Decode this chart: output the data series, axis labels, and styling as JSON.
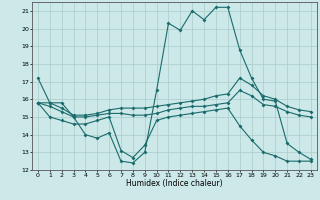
{
  "xlabel": "Humidex (Indice chaleur)",
  "background_color": "#cce8e8",
  "grid_color": "#aacccc",
  "line_color": "#1a6b6b",
  "xlim": [
    -0.5,
    23.5
  ],
  "ylim": [
    12,
    21.5
  ],
  "yticks": [
    12,
    13,
    14,
    15,
    16,
    17,
    18,
    19,
    20,
    21
  ],
  "xticks": [
    0,
    1,
    2,
    3,
    4,
    5,
    6,
    7,
    8,
    9,
    10,
    11,
    12,
    13,
    14,
    15,
    16,
    17,
    18,
    19,
    20,
    21,
    22,
    23
  ],
  "line1_x": [
    0,
    1,
    2,
    3,
    4,
    5,
    6,
    7,
    8,
    9,
    10,
    11,
    12,
    13,
    14,
    15,
    16,
    17,
    18,
    19,
    20,
    21,
    22,
    23
  ],
  "line1_y": [
    17.2,
    15.8,
    15.8,
    15.0,
    14.0,
    13.8,
    14.1,
    12.5,
    12.4,
    13.0,
    16.5,
    20.3,
    19.9,
    21.0,
    20.5,
    21.2,
    21.2,
    18.8,
    17.2,
    16.0,
    15.9,
    13.5,
    13.0,
    12.6
  ],
  "line2_x": [
    0,
    1,
    2,
    3,
    4,
    5,
    6,
    7,
    8,
    9,
    10,
    11,
    12,
    13,
    14,
    15,
    16,
    17,
    18,
    19,
    20,
    21,
    22,
    23
  ],
  "line2_y": [
    15.8,
    15.8,
    15.5,
    15.1,
    15.1,
    15.2,
    15.4,
    15.5,
    15.5,
    15.5,
    15.6,
    15.7,
    15.8,
    15.9,
    16.0,
    16.2,
    16.3,
    17.2,
    16.8,
    16.2,
    16.0,
    15.6,
    15.4,
    15.3
  ],
  "line3_x": [
    0,
    1,
    2,
    3,
    4,
    5,
    6,
    7,
    8,
    9,
    10,
    11,
    12,
    13,
    14,
    15,
    16,
    17,
    18,
    19,
    20,
    21,
    22,
    23
  ],
  "line3_y": [
    15.8,
    15.6,
    15.3,
    15.0,
    15.0,
    15.1,
    15.2,
    15.2,
    15.1,
    15.1,
    15.2,
    15.4,
    15.5,
    15.6,
    15.6,
    15.7,
    15.8,
    16.5,
    16.2,
    15.7,
    15.6,
    15.3,
    15.1,
    15.0
  ],
  "line4_x": [
    0,
    1,
    2,
    3,
    4,
    5,
    6,
    7,
    8,
    9,
    10,
    11,
    12,
    13,
    14,
    15,
    16,
    17,
    18,
    19,
    20,
    21,
    22,
    23
  ],
  "line4_y": [
    15.8,
    15.0,
    14.8,
    14.6,
    14.6,
    14.8,
    15.0,
    13.1,
    12.7,
    13.4,
    14.8,
    15.0,
    15.1,
    15.2,
    15.3,
    15.4,
    15.5,
    14.5,
    13.7,
    13.0,
    12.8,
    12.5,
    12.5,
    12.5
  ]
}
